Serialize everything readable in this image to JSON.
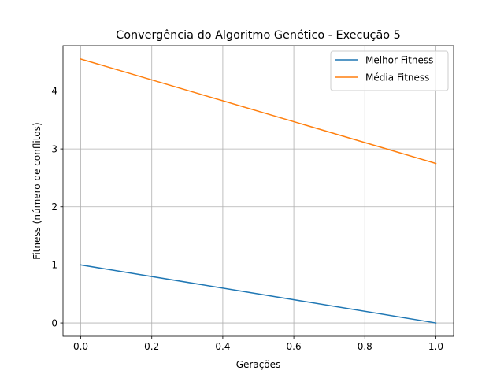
{
  "chart_data": {
    "type": "line",
    "title": "Convergência do Algoritmo Genético - Execução 5",
    "xlabel": "Gerações",
    "ylabel": "Fitness (número de conflitos)",
    "xlim": [
      -0.05,
      1.05
    ],
    "ylim": [
      -0.23,
      4.78
    ],
    "x_ticks": [
      0.0,
      0.2,
      0.4,
      0.6,
      0.8,
      1.0
    ],
    "x_tick_labels": [
      "0.0",
      "0.2",
      "0.4",
      "0.6",
      "0.8",
      "1.0"
    ],
    "y_ticks": [
      0,
      1,
      2,
      3,
      4
    ],
    "y_tick_labels": [
      "0",
      "1",
      "2",
      "3",
      "4"
    ],
    "grid": true,
    "legend_position": "top-right",
    "x": [
      0,
      1
    ],
    "series": [
      {
        "name": "Melhor Fitness",
        "values": [
          1.0,
          0.0
        ],
        "color": "#1f77b4"
      },
      {
        "name": "Média Fitness",
        "values": [
          4.55,
          2.75
        ],
        "color": "#ff7f0e"
      }
    ]
  }
}
